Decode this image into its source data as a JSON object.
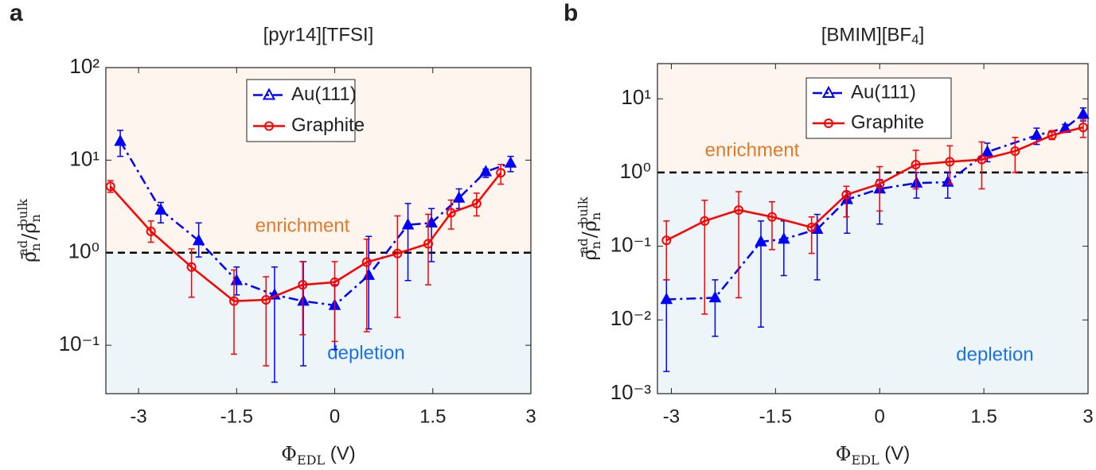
{
  "chart_data": [
    {
      "type": "line",
      "panel": "a",
      "title": "[pyr14][TFSI]",
      "xlabel": [
        "Φ",
        "EDL",
        " (V)"
      ],
      "ylabel": [
        "ρ̄",
        "n",
        "ad",
        "/",
        "ρ̄",
        "n",
        "bulk"
      ],
      "xlim": [
        -3.5,
        3
      ],
      "xticks": [
        -3,
        -1.5,
        0,
        1.5,
        3
      ],
      "ylim": [
        0.03,
        100
      ],
      "log_y": true,
      "yticks": [
        {
          "value": 0.1,
          "label": "10⁻¹"
        },
        {
          "value": 1,
          "label": "10⁰"
        },
        {
          "value": 10,
          "label": "10¹"
        },
        {
          "value": 100,
          "label": "10²"
        }
      ],
      "threshold": 1,
      "annotations": [
        "enrichment",
        "depletion"
      ],
      "legend": "upper center",
      "series": [
        {
          "name": "Au(111)",
          "color": "#0000ff",
          "marker": "triangle",
          "linestyle": "dashdot",
          "x": [
            -3.28,
            -2.66,
            -2.08,
            -1.5,
            -0.92,
            -0.48,
            0,
            0.52,
            1.12,
            1.48,
            1.9,
            2.31,
            2.69
          ],
          "values": [
            16,
            2.9,
            1.35,
            0.5,
            0.35,
            0.3,
            0.27,
            0.57,
            2.0,
            2.1,
            3.9,
            7.5,
            9.3
          ],
          "lower": [
            11,
            2.1,
            0.9,
            0.35,
            0.04,
            0.06,
            0.09,
            0.15,
            0.5,
            0.8,
            3,
            6.5,
            7.5
          ],
          "upper": [
            21,
            3.5,
            2.1,
            0.7,
            0.7,
            0.8,
            0.45,
            1.5,
            3.4,
            3,
            4.9,
            8,
            11
          ]
        },
        {
          "name": "Graphite",
          "color": "#ff0000",
          "marker": "circle",
          "linestyle": "solid",
          "x": [
            -3.43,
            -2.81,
            -2.19,
            -1.54,
            -1.05,
            -0.49,
            0,
            0.49,
            0.96,
            1.43,
            1.78,
            2.17,
            2.54
          ],
          "values": [
            5.2,
            1.7,
            0.7,
            0.3,
            0.31,
            0.45,
            0.48,
            0.79,
            0.98,
            1.25,
            2.7,
            3.4,
            7.3
          ],
          "lower": [
            4.5,
            1.3,
            0.33,
            0.08,
            0.06,
            0.13,
            0.11,
            0.14,
            0.2,
            0.45,
            1.8,
            2.5,
            5.5
          ],
          "upper": [
            6,
            2.2,
            1.1,
            0.65,
            0.55,
            0.8,
            0.8,
            1.4,
            2.5,
            2.6,
            3.7,
            4.4,
            9
          ]
        }
      ]
    },
    {
      "type": "line",
      "panel": "b",
      "title": "[BMIM][BF4]",
      "xlabel": [
        "Φ",
        "EDL",
        " (V)"
      ],
      "ylabel": [
        "ρ̄",
        "n",
        "ad",
        "/",
        "ρ̄",
        "n",
        "bulk"
      ],
      "xlim": [
        -3.2,
        3
      ],
      "xticks": [
        -3,
        -1.5,
        0,
        1.5,
        3
      ],
      "ylim": [
        0.001,
        30
      ],
      "log_y": true,
      "yticks": [
        {
          "value": 0.001,
          "label": "10⁻³"
        },
        {
          "value": 0.01,
          "label": "10⁻²"
        },
        {
          "value": 0.1,
          "label": "10⁻¹"
        },
        {
          "value": 1,
          "label": "10⁰"
        },
        {
          "value": 10,
          "label": "10¹"
        }
      ],
      "threshold": 1,
      "annotations": [
        "enrichment",
        "depletion"
      ],
      "legend": "upper center",
      "series": [
        {
          "name": "Au(111)",
          "color": "#0000ff",
          "marker": "triangle",
          "linestyle": "dashdot",
          "x": [
            -3.07,
            -2.37,
            -1.71,
            -1.38,
            -0.9,
            -0.47,
            0,
            0.53,
            0.98,
            1.55,
            2.26,
            2.67,
            2.93
          ],
          "values": [
            0.019,
            0.02,
            0.115,
            0.125,
            0.17,
            0.43,
            0.6,
            0.72,
            0.74,
            1.9,
            3.2,
            4.0,
            6.2
          ],
          "lower": [
            0.002,
            0.006,
            0.008,
            0.04,
            0.035,
            0.15,
            0.2,
            0.45,
            0.45,
            1.4,
            2.4,
            3.5,
            5
          ],
          "upper": [
            0.035,
            0.035,
            0.22,
            0.22,
            0.27,
            0.55,
            0.8,
            1.0,
            1.0,
            2.5,
            4,
            4.5,
            7.5
          ]
        },
        {
          "name": "Graphite",
          "color": "#ff0000",
          "marker": "circle",
          "linestyle": "solid",
          "x": [
            -3.07,
            -2.52,
            -2.03,
            -1.55,
            -0.98,
            -0.48,
            0,
            0.52,
            1.01,
            1.47,
            1.95,
            2.48,
            2.93
          ],
          "values": [
            0.12,
            0.22,
            0.31,
            0.25,
            0.18,
            0.5,
            0.7,
            1.28,
            1.4,
            1.5,
            1.95,
            3.2,
            4.1
          ],
          "lower": [
            0.035,
            0.012,
            0.02,
            0.09,
            0.08,
            0.25,
            0.3,
            0.6,
            0.7,
            0.6,
            1.0,
            2.8,
            3
          ],
          "upper": [
            0.22,
            0.42,
            0.55,
            0.4,
            0.25,
            0.65,
            1.2,
            2,
            2.3,
            2.6,
            3,
            3.7,
            5.3
          ]
        }
      ]
    }
  ]
}
